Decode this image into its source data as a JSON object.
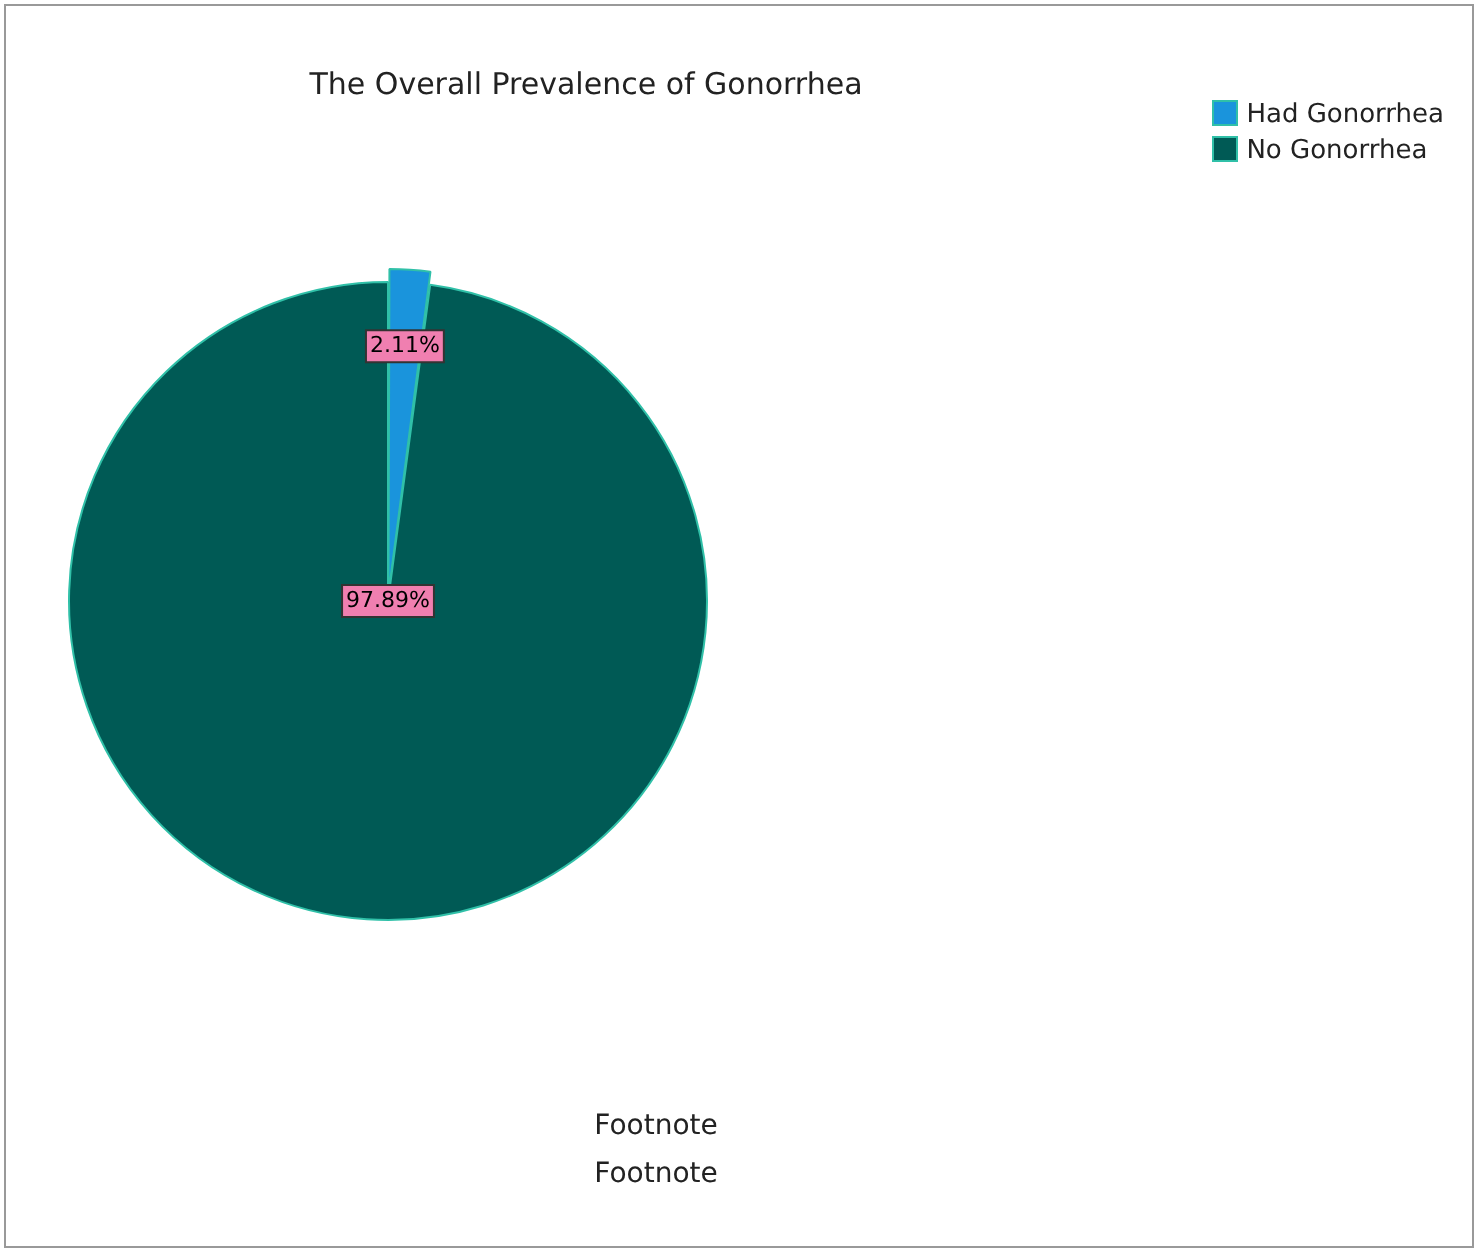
{
  "chart_data": {
    "type": "pie",
    "title": "The Overall Prevalence of Gonorrhea",
    "categories": [
      "Had Gonorrhea",
      "No Gonorrhea"
    ],
    "values": [
      2.11,
      97.89
    ],
    "value_labels": [
      "2.11%",
      "97.89%"
    ],
    "colors": [
      "#1a94dc",
      "#005a55"
    ],
    "legend": "top right",
    "annotations": [
      "Footnote",
      "Footnote"
    ]
  }
}
